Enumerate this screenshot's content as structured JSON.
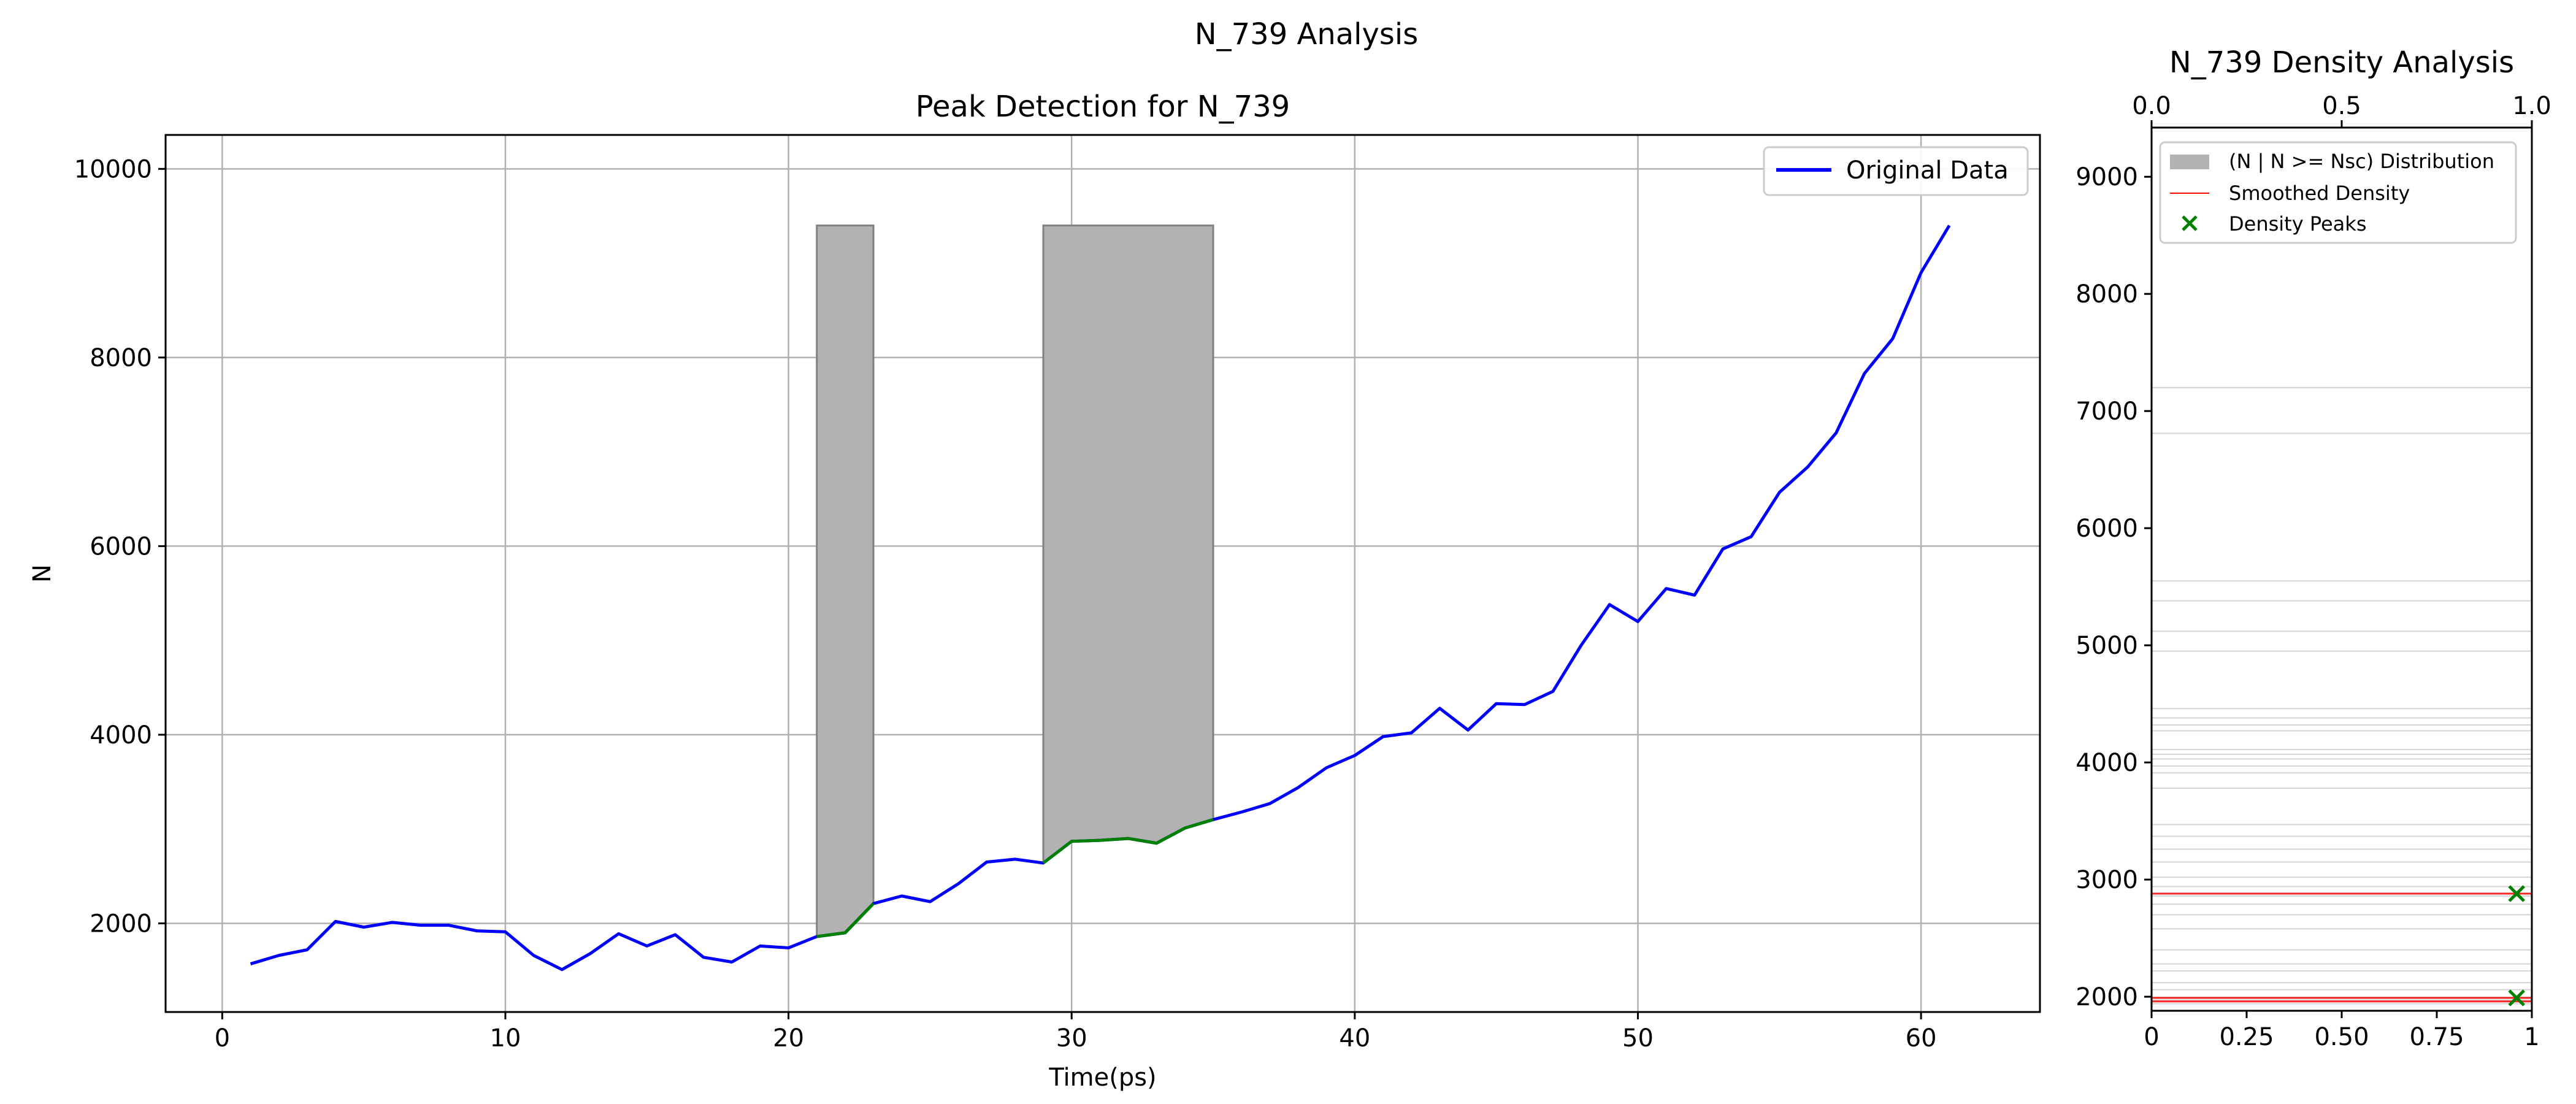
{
  "figure": {
    "suptitle": "N_739 Analysis"
  },
  "colors": {
    "original": "#0000ff",
    "highlight": "#008000",
    "fill": "#b2b2b2",
    "fill_edge": "#808080",
    "grid": "#b0b0b0",
    "density": "#ff0000",
    "hist_lines": "#d3d3d3",
    "peaks": "#008000"
  },
  "chart_data": [
    {
      "type": "line",
      "title": "Peak Detection for N_739",
      "xlabel": "Time(ps)",
      "ylabel": "N",
      "xlim": [
        -2,
        64.2
      ],
      "ylim": [
        1060,
        10360
      ],
      "xticks": [
        0,
        10,
        20,
        30,
        40,
        50,
        60
      ],
      "yticks": [
        2000,
        4000,
        6000,
        8000,
        10000
      ],
      "grid": true,
      "legend": {
        "position": "top-right",
        "entries": [
          "Original Data"
        ]
      },
      "series": [
        {
          "name": "Original Data",
          "x": [
            1,
            2,
            3,
            4,
            5,
            6,
            7,
            8,
            9,
            10,
            11,
            12,
            13,
            14,
            15,
            16,
            17,
            18,
            19,
            20,
            21,
            22,
            23,
            24,
            25,
            26,
            27,
            28,
            29,
            30,
            31,
            32,
            33,
            34,
            35,
            36,
            37,
            38,
            39,
            40,
            41,
            42,
            43,
            44,
            45,
            46,
            47,
            48,
            49,
            50,
            51,
            52,
            53,
            54,
            55,
            56,
            57,
            58,
            59,
            60,
            61
          ],
          "y": [
            1570,
            1660,
            1720,
            2020,
            1960,
            2010,
            1980,
            1980,
            1920,
            1910,
            1660,
            1510,
            1680,
            1890,
            1760,
            1880,
            1640,
            1590,
            1760,
            1740,
            1860,
            1900,
            2210,
            2290,
            2230,
            2420,
            2650,
            2680,
            2640,
            2870,
            2880,
            2900,
            2850,
            3010,
            3100,
            3180,
            3270,
            3440,
            3650,
            3780,
            3980,
            4020,
            4280,
            4050,
            4330,
            4320,
            4460,
            4950,
            5380,
            5200,
            5550,
            5480,
            5970,
            6100,
            6570,
            6840,
            7200,
            7830,
            8200,
            8900,
            9400
          ]
        }
      ],
      "highlight_ranges": [
        [
          21,
          23
        ],
        [
          29,
          35
        ]
      ],
      "shaded_regions": [
        {
          "x_start": 21,
          "x_end": 23,
          "y_top": 9400
        },
        {
          "x_start": 29,
          "x_end": 35,
          "y_top": 9400
        }
      ]
    },
    {
      "type": "bar",
      "orientation": "horizontal",
      "title": "N_739 Density Analysis",
      "xlim": [
        0,
        1
      ],
      "ylim": [
        1880,
        9420
      ],
      "xticks_bottom": [
        0.0,
        0.25,
        0.5,
        0.75,
        1.0
      ],
      "xticks_top": [
        0.0,
        0.5,
        1.0
      ],
      "yticks": [
        2000,
        3000,
        4000,
        5000,
        6000,
        7000,
        8000,
        9000
      ],
      "grid": false,
      "legend": {
        "position": "top-left",
        "entries": [
          "(N | N >= Nsc) Distribution",
          "Smoothed Density",
          "Density Peaks"
        ]
      },
      "distribution_levels": [
        1940,
        1970,
        1995,
        2060,
        2120,
        2220,
        2280,
        2400,
        2580,
        2700,
        2790,
        2860,
        2940,
        3020,
        3150,
        3260,
        3370,
        3470,
        3780,
        3910,
        3970,
        4030,
        4070,
        4110,
        4270,
        4320,
        4380,
        4460,
        4950,
        5120,
        5380,
        5550,
        6810,
        7200
      ],
      "smoothed_density_levels": [
        2880,
        1990,
        1960
      ],
      "peaks": [
        {
          "x": 0.96,
          "y": 2880
        },
        {
          "x": 0.96,
          "y": 1990
        }
      ]
    }
  ]
}
